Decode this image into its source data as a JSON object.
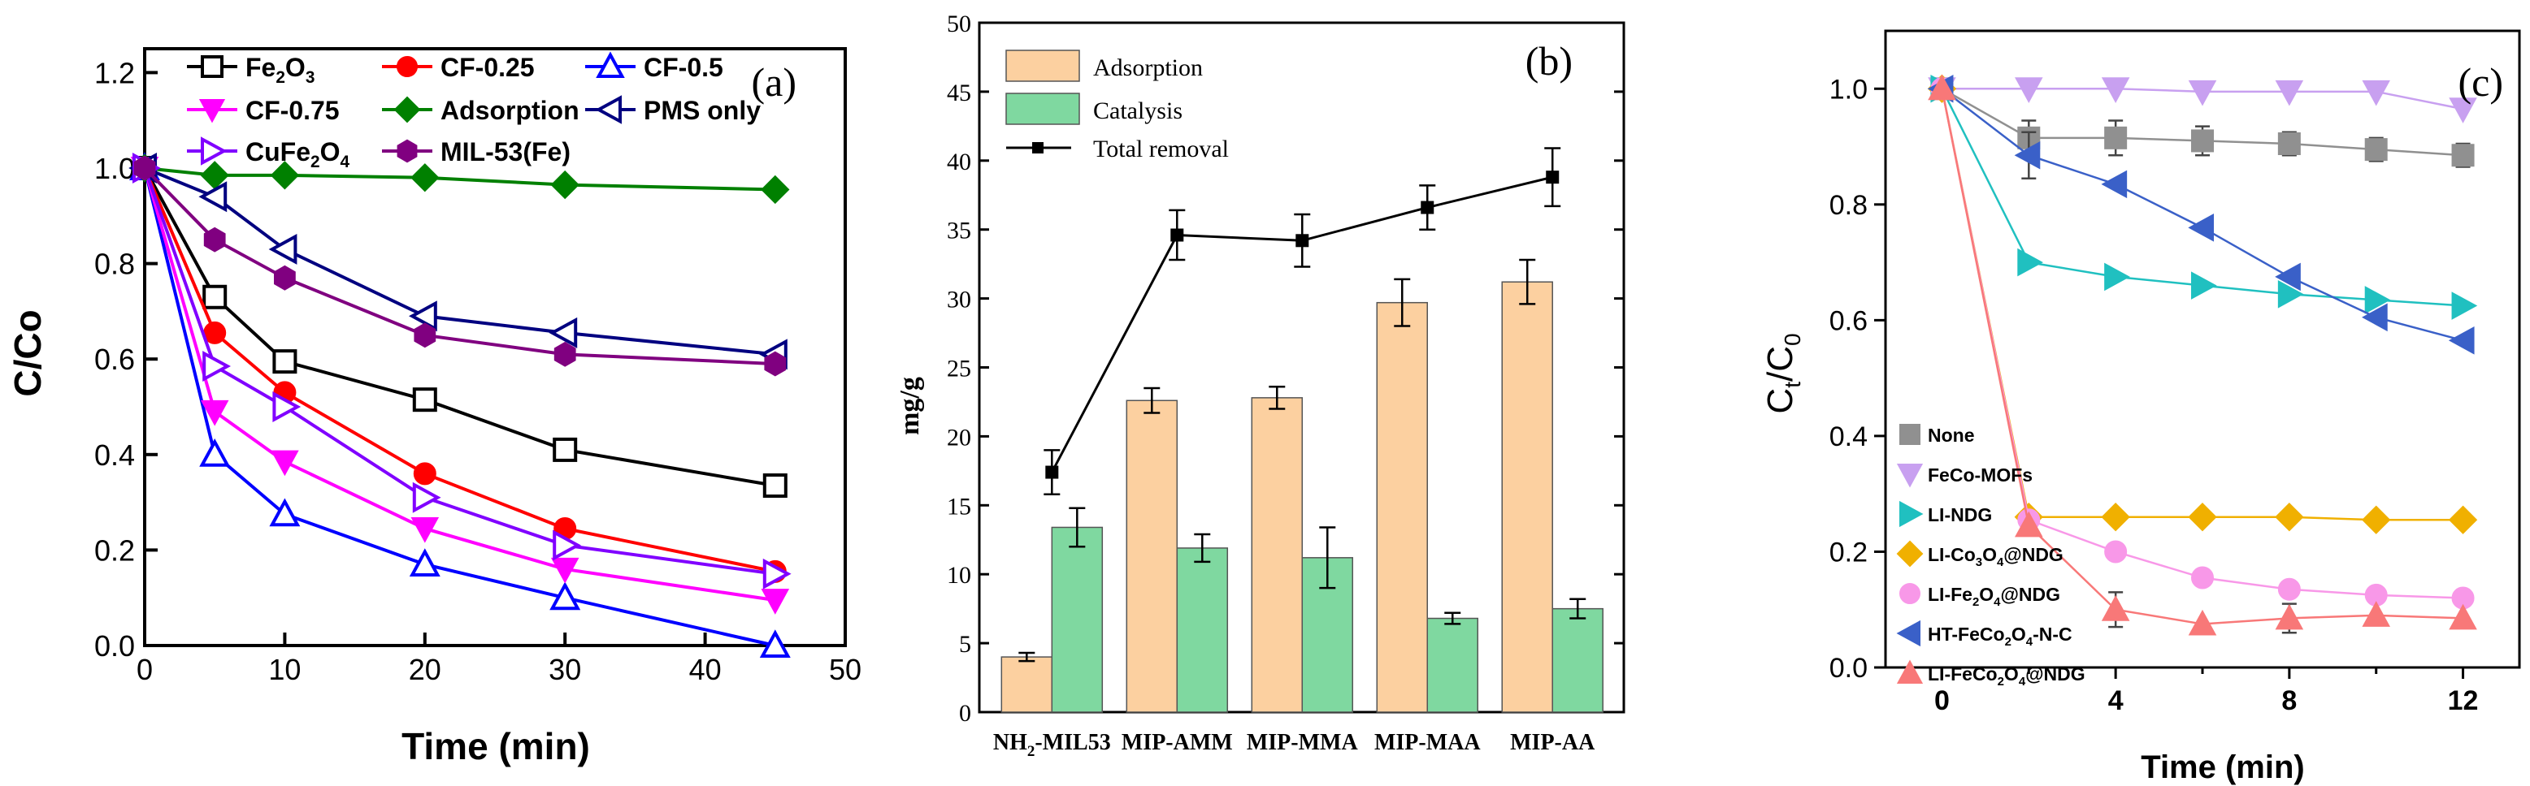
{
  "chart_data": [
    {
      "type": "line",
      "panel_label": "(a)",
      "xlabel": "Time (min)",
      "ylabel": "C/Co",
      "xlim": [
        0,
        50
      ],
      "ylim": [
        0,
        1.25
      ],
      "xticks": [
        "0",
        "10",
        "20",
        "30",
        "40",
        "50"
      ],
      "yticks": [
        "0.0",
        "0.2",
        "0.4",
        "0.6",
        "0.8",
        "1.0",
        "1.2"
      ],
      "grid": false,
      "legend_position": "top",
      "x": [
        0,
        5,
        10,
        20,
        30,
        45
      ],
      "series": [
        {
          "name": "Fe2O3",
          "name_base": "Fe",
          "name_sub1": "2",
          "name_mid": "O",
          "name_sub2": "3",
          "color": "#000000",
          "marker": "square-open",
          "values": [
            1.0,
            0.73,
            0.595,
            0.515,
            0.41,
            0.335
          ]
        },
        {
          "name": "CF-0.25",
          "color": "#ff0000",
          "marker": "circle-filled",
          "values": [
            1.0,
            0.655,
            0.53,
            0.36,
            0.245,
            0.155
          ]
        },
        {
          "name": "CF-0.5",
          "color": "#0000ff",
          "marker": "triangle-up-open",
          "values": [
            1.0,
            0.4,
            0.275,
            0.17,
            0.1,
            0.0
          ]
        },
        {
          "name": "CF-0.75",
          "color": "#ff00ff",
          "marker": "triangle-down-filled",
          "values": [
            1.0,
            0.49,
            0.385,
            0.245,
            0.16,
            0.095
          ]
        },
        {
          "name": "Adsorption",
          "color": "#008000",
          "marker": "diamond-filled",
          "values": [
            1.0,
            0.985,
            0.985,
            0.98,
            0.965,
            0.955
          ]
        },
        {
          "name": "PMS only",
          "color": "#000080",
          "marker": "triangle-left-open",
          "values": [
            1.0,
            0.94,
            0.83,
            0.69,
            0.655,
            0.61
          ]
        },
        {
          "name": "CuFe2O4",
          "name_base": "CuFe",
          "name_sub1": "2",
          "name_mid": "O",
          "name_sub2": "4",
          "color": "#8000ff",
          "marker": "triangle-right-open",
          "values": [
            1.0,
            0.585,
            0.5,
            0.31,
            0.21,
            0.15
          ]
        },
        {
          "name": "MIL-53(Fe)",
          "color": "#800080",
          "marker": "hexagon-filled",
          "values": [
            1.0,
            0.85,
            0.77,
            0.65,
            0.61,
            0.59
          ]
        }
      ]
    },
    {
      "type": "bar",
      "panel_label": "(b)",
      "ylabel": "mg/g",
      "ylim": [
        0,
        50
      ],
      "yticks": [
        "0",
        "5",
        "10",
        "15",
        "20",
        "25",
        "30",
        "35",
        "40",
        "45",
        "50"
      ],
      "grid": false,
      "legend_position": "top-left",
      "categories": [
        "NH2-MIL53",
        "MIP-AMM",
        "MIP-MMA",
        "MIP-MAA",
        "MIP-AA"
      ],
      "category_parts": [
        {
          "base": "NH",
          "sub": "2",
          "rest": "-MIL53"
        },
        {
          "base": "MIP-AMM",
          "sub": "",
          "rest": ""
        },
        {
          "base": "MIP-MMA",
          "sub": "",
          "rest": ""
        },
        {
          "base": "MIP-MAA",
          "sub": "",
          "rest": ""
        },
        {
          "base": "MIP-AA",
          "sub": "",
          "rest": ""
        }
      ],
      "series": [
        {
          "name": "Adsorption",
          "kind": "bar",
          "color": "#fcd0a0",
          "values": [
            4.0,
            22.6,
            22.8,
            29.7,
            31.2
          ],
          "errors": [
            0.3,
            0.9,
            0.8,
            1.7,
            1.6
          ]
        },
        {
          "name": "Catalysis",
          "kind": "bar",
          "color": "#7fd8a0",
          "values": [
            13.4,
            11.9,
            11.2,
            6.8,
            7.5
          ],
          "errors": [
            1.4,
            1.0,
            2.2,
            0.4,
            0.7
          ]
        },
        {
          "name": "Total removal",
          "kind": "line",
          "color": "#000000",
          "values": [
            17.4,
            34.6,
            34.2,
            36.6,
            38.8
          ],
          "errors": [
            1.6,
            1.8,
            1.9,
            1.6,
            2.1
          ]
        }
      ]
    },
    {
      "type": "line",
      "panel_label": "(c)",
      "xlabel": "Time (min)",
      "ylabel": "Ct/C0",
      "ylabel_base": "C",
      "ylabel_sub1": "t",
      "ylabel_mid": "/C",
      "ylabel_sub2": "0",
      "xlim": [
        -1.3,
        13.3
      ],
      "ylim": [
        0,
        1.1
      ],
      "xticks": [
        "0",
        "4",
        "8",
        "12"
      ],
      "yticks": [
        "0.0",
        "0.2",
        "0.4",
        "0.6",
        "0.8",
        "1.0"
      ],
      "grid": false,
      "legend_position": "bottom-left",
      "x": [
        0,
        2,
        4,
        6,
        8,
        10,
        12
      ],
      "series": [
        {
          "name": "None",
          "color": "#909090",
          "marker": "square",
          "values": [
            1.0,
            0.915,
            0.915,
            0.91,
            0.905,
            0.895,
            0.885
          ],
          "errors": [
            0,
            0.03,
            0.03,
            0.025,
            0.02,
            0.02,
            0.02
          ]
        },
        {
          "name": "FeCo-MOFs",
          "color": "#c8a0f0",
          "marker": "triangle-down",
          "values": [
            1.0,
            1.0,
            1.0,
            0.995,
            0.995,
            0.995,
            0.965
          ],
          "errors": [
            0,
            0,
            0,
            0,
            0,
            0,
            0
          ]
        },
        {
          "name": "LI-NDG",
          "color": "#20c0c0",
          "marker": "triangle-right",
          "values": [
            1.0,
            0.7,
            0.675,
            0.66,
            0.645,
            0.635,
            0.625
          ],
          "errors": [
            0,
            0,
            0,
            0,
            0,
            0,
            0
          ]
        },
        {
          "name": "LI-Co3O4@NDG",
          "name_base": "LI-Co",
          "name_sub1": "3",
          "name_mid": "O",
          "name_sub2": "4",
          "name_rest": "@NDG",
          "color": "#f0b000",
          "marker": "diamond",
          "values": [
            1.0,
            0.26,
            0.26,
            0.26,
            0.26,
            0.255,
            0.255
          ],
          "errors": [
            0,
            0,
            0,
            0,
            0,
            0,
            0
          ]
        },
        {
          "name": "LI-Fe2O4@NDG",
          "name_base": "LI-Fe",
          "name_sub1": "2",
          "name_mid": "O",
          "name_sub2": "4",
          "name_rest": "@NDG",
          "color": "#f898e8",
          "marker": "circle",
          "values": [
            1.0,
            0.255,
            0.2,
            0.155,
            0.135,
            0.125,
            0.12
          ],
          "errors": [
            0,
            0,
            0,
            0,
            0,
            0,
            0
          ]
        },
        {
          "name": "HT-FeCo2O4-N-C",
          "name_base": "HT-FeCo",
          "name_sub1": "2",
          "name_mid": "O",
          "name_sub2": "4",
          "name_rest": "-N-C",
          "color": "#3a60c8",
          "marker": "triangle-left",
          "values": [
            1.0,
            0.885,
            0.835,
            0.76,
            0.675,
            0.605,
            0.565
          ],
          "errors": [
            0,
            0.04,
            0,
            0,
            0,
            0,
            0
          ]
        },
        {
          "name": "LI-FeCo2O4@NDG",
          "name_base": "LI-FeCo",
          "name_sub1": "2",
          "name_mid": "O",
          "name_sub2": "4",
          "name_rest": "@NDG",
          "color": "#f87878",
          "marker": "triangle-up",
          "values": [
            1.0,
            0.245,
            0.1,
            0.075,
            0.085,
            0.09,
            0.085
          ],
          "errors": [
            0,
            0,
            0.03,
            0,
            0.025,
            0,
            0
          ]
        }
      ]
    }
  ]
}
